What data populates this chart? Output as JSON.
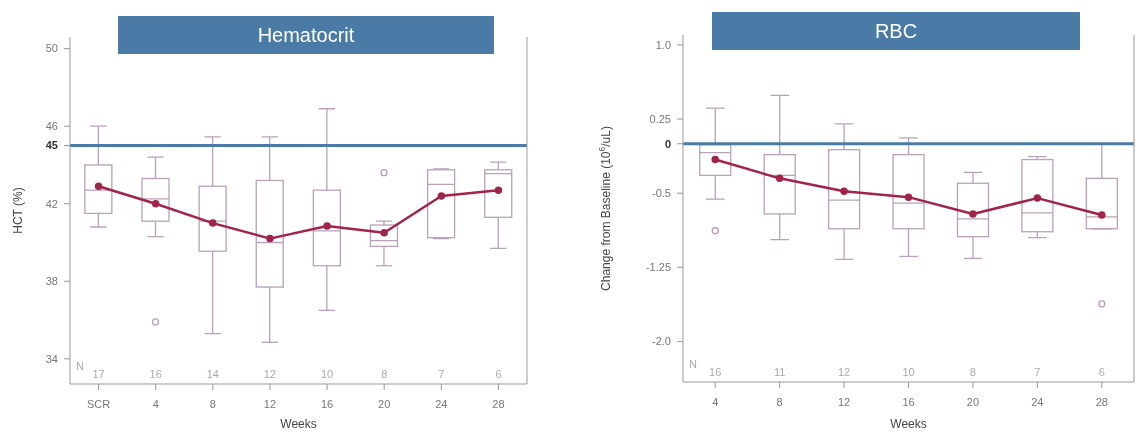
{
  "chart_data": [
    {
      "type": "box",
      "title": "Hematocrit",
      "xlabel": "Weeks",
      "ylabel": "HCT (%)",
      "categories": [
        "SCR",
        "4",
        "8",
        "12",
        "16",
        "20",
        "24",
        "28"
      ],
      "ylim": [
        32.7,
        50.6
      ],
      "yticks": [
        34,
        38,
        42,
        45,
        46,
        50
      ],
      "marker": "circle",
      "series": [
        {
          "type": "box",
          "color": "#b8a2b8",
          "boxes": [
            {
              "low": 40.8,
              "q1": 41.5,
              "median": 42.7,
              "q3": 44.0,
              "high": 46.0
            },
            {
              "low": 40.3,
              "q1": 41.1,
              "median": 42.25,
              "q3": 43.3,
              "high": 44.4,
              "outliers": [
                35.9
              ]
            },
            {
              "low": 35.3,
              "q1": 39.55,
              "median": 41.1,
              "q3": 42.9,
              "high": 45.45
            },
            {
              "low": 34.85,
              "q1": 37.7,
              "median": 40.0,
              "q3": 43.2,
              "high": 45.45
            },
            {
              "low": 36.5,
              "q1": 38.8,
              "median": 40.6,
              "q3": 42.7,
              "high": 46.9
            },
            {
              "low": 38.8,
              "q1": 39.8,
              "median": 40.1,
              "q3": 40.9,
              "high": 41.1,
              "outliers": [
                43.6
              ]
            },
            {
              "low": 40.2,
              "q1": 40.25,
              "median": 43.0,
              "q3": 43.75,
              "high": 43.8
            },
            {
              "low": 39.7,
              "q1": 41.3,
              "median": 43.55,
              "q3": 43.75,
              "high": 44.15
            }
          ]
        },
        {
          "type": "line",
          "color": "#a3244a",
          "values": [
            42.9,
            42.0,
            41.0,
            40.2,
            40.85,
            40.5,
            42.4,
            42.7
          ]
        }
      ],
      "ref_lines": [
        {
          "axis": "y",
          "value": 45,
          "color": "#4a7ba7"
        }
      ],
      "annotations": [
        "N",
        "17",
        "16",
        "14",
        "12",
        "10",
        "8",
        "7",
        "6"
      ]
    },
    {
      "type": "box",
      "title": "RBC",
      "xlabel": "Weeks",
      "ylabel": "Change from Baseline (10$^{6}$/uL)",
      "categories": [
        "4",
        "8",
        "12",
        "16",
        "20",
        "24",
        "28"
      ],
      "ylim": [
        -2.41,
        1.1
      ],
      "yticks": [
        {
          "value": 1,
          "label": "1.0"
        },
        0.25,
        0,
        -0.5,
        -1.25,
        {
          "value": -2,
          "label": "-2.0"
        }
      ],
      "marker": "circle",
      "series": [
        {
          "type": "box",
          "color": "#b8a2b8",
          "boxes": [
            {
              "low": -0.56,
              "q1": -0.32,
              "median": -0.09,
              "q3": -0.01,
              "high": 0.36,
              "outliers": [
                -0.88
              ]
            },
            {
              "low": -0.97,
              "q1": -0.71,
              "median": -0.32,
              "q3": -0.11,
              "high": 0.49
            },
            {
              "low": -1.17,
              "q1": -0.86,
              "median": -0.57,
              "q3": -0.06,
              "high": 0.2
            },
            {
              "low": -1.14,
              "q1": -0.86,
              "median": -0.6,
              "q3": -0.11,
              "high": 0.06
            },
            {
              "low": -1.16,
              "q1": -0.94,
              "median": -0.76,
              "q3": -0.4,
              "high": -0.29
            },
            {
              "low": -0.95,
              "q1": -0.89,
              "median": -0.7,
              "q3": -0.16,
              "high": -0.13
            },
            {
              "low": -0.86,
              "q1": -0.86,
              "median": -0.74,
              "q3": -0.35,
              "high": 0.0,
              "outliers": [
                -1.62
              ]
            }
          ]
        },
        {
          "type": "line",
          "color": "#a3244a",
          "values": [
            -0.16,
            -0.35,
            -0.48,
            -0.54,
            -0.71,
            -0.55,
            -0.72
          ]
        }
      ],
      "ref_lines": [
        {
          "axis": "y",
          "value": 0,
          "color": "#4a7ba7"
        }
      ],
      "annotations": [
        "N",
        "16",
        "11",
        "12",
        "10",
        "8",
        "7",
        "6"
      ]
    }
  ]
}
